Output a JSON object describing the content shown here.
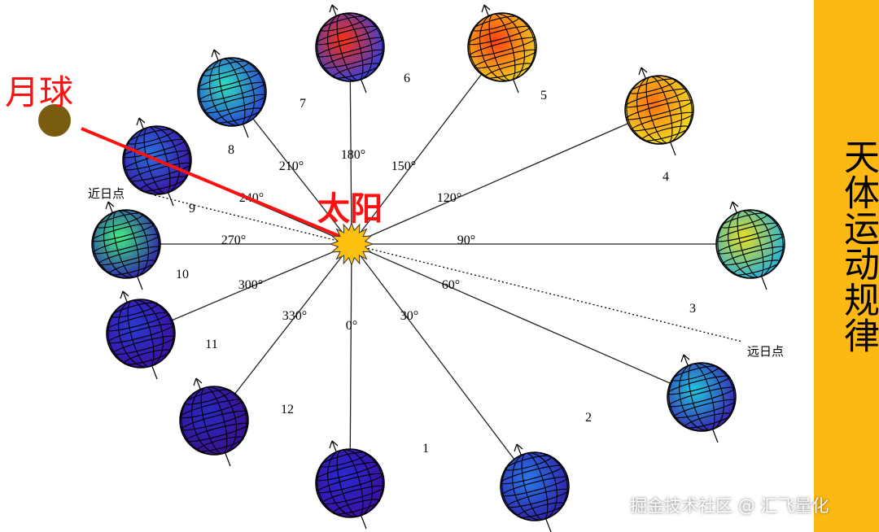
{
  "diagram": {
    "sun_label": "太阳",
    "moon_label": "月球",
    "perihelion_label": "近日点",
    "aphelion_label": "远日点",
    "angles": [
      "0°",
      "30°",
      "60°",
      "90°",
      "120°",
      "150°",
      "180°",
      "210°",
      "240°",
      "270°",
      "300°",
      "330°"
    ],
    "positions": [
      "1",
      "2",
      "3",
      "4",
      "5",
      "6",
      "7",
      "8",
      "9",
      "10",
      "11",
      "12"
    ],
    "colors": {
      "sun": "#FDC010",
      "moon": "#7A5C10",
      "annotation_red": "#FF1010",
      "sidebar": "#FDB813"
    }
  },
  "sidebar": {
    "title": "天体运动规律"
  },
  "watermark": "掘金技术社区 @ 汇飞量化"
}
